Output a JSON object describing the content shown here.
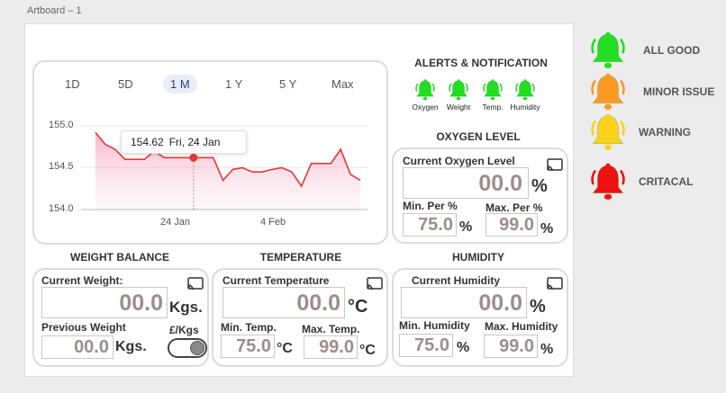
{
  "artboard_title": "Artboard – 1",
  "colors": {
    "good": "#22dd22",
    "minor": "#ff9922",
    "warning": "#ffd21a",
    "critical": "#ee1111",
    "line": "#e53935",
    "value": "#9e8d8d"
  },
  "chart": {
    "tabs": [
      "1D",
      "5D",
      "1 M",
      "1 Y",
      "5 Y",
      "Max"
    ],
    "active_tab": "1 M",
    "tooltip": {
      "value": "154.62",
      "date": "Fri, 24 Jan"
    }
  },
  "chart_data": {
    "type": "area",
    "x_tick_labels": [
      "24 Jan",
      "4 Feb"
    ],
    "y_tick_labels": [
      "155.0",
      "154.5",
      "154.0"
    ],
    "ylim": [
      154.0,
      155.0
    ],
    "values": [
      154.92,
      154.78,
      154.72,
      154.6,
      154.6,
      154.6,
      154.7,
      154.62,
      154.62,
      154.62,
      154.62,
      154.62,
      154.62,
      154.35,
      154.48,
      154.5,
      154.45,
      154.45,
      154.48,
      154.5,
      154.45,
      154.28,
      154.55,
      154.55,
      154.55,
      154.72,
      154.42,
      154.35
    ],
    "highlight_index": 10,
    "grid": true
  },
  "alerts": {
    "title": "ALERTS & NOTIFICATION",
    "items": [
      {
        "label": "Oxygen",
        "icon": "bell-icon"
      },
      {
        "label": "Weight",
        "icon": "bell-icon"
      },
      {
        "label": "Temp.",
        "icon": "bell-icon"
      },
      {
        "label": "Humidity",
        "icon": "bell-icon"
      }
    ]
  },
  "oxygen": {
    "title": "OXYGEN LEVEL",
    "current_label": "Current Oxygen Level",
    "current_value": "00.0",
    "current_unit": "%",
    "min_label": "Min. Per %",
    "min_value": "75.0",
    "min_unit": "%",
    "max_label": "Max. Per %",
    "max_value": "99.0",
    "max_unit": "%"
  },
  "weight": {
    "title": "WEIGHT BALANCE",
    "current_label": "Current Weight:",
    "current_value": "00.0",
    "current_unit": "Kgs.",
    "previous_label": "Previous Weight",
    "previous_value": "00.0",
    "previous_unit": "Kgs.",
    "toggle_label": "£/Kgs"
  },
  "temperature": {
    "title": "TEMPERATURE",
    "current_label": "Current Temperature",
    "current_value": "00.0",
    "current_unit": "°C",
    "min_label": "Min. Temp.",
    "min_value": "75.0",
    "min_unit": "°C",
    "max_label": "Max. Temp.",
    "max_value": "99.0",
    "max_unit": "°C"
  },
  "humidity": {
    "title": "HUMIDITY",
    "current_label": "Current Humidity",
    "current_value": "00.0",
    "current_unit": "%",
    "min_label": "Min. Humidity",
    "min_value": "75.0",
    "min_unit": "%",
    "max_label": "Max. Humidity",
    "max_value": "99.0",
    "max_unit": "%"
  },
  "legend": [
    {
      "label": "ALL GOOD",
      "color": "#22dd22"
    },
    {
      "label": "MINOR ISSUE",
      "color": "#ff9922"
    },
    {
      "label": "WARNING",
      "color": "#ffd21a"
    },
    {
      "label": "CRITACAL",
      "color": "#ee1111"
    }
  ]
}
